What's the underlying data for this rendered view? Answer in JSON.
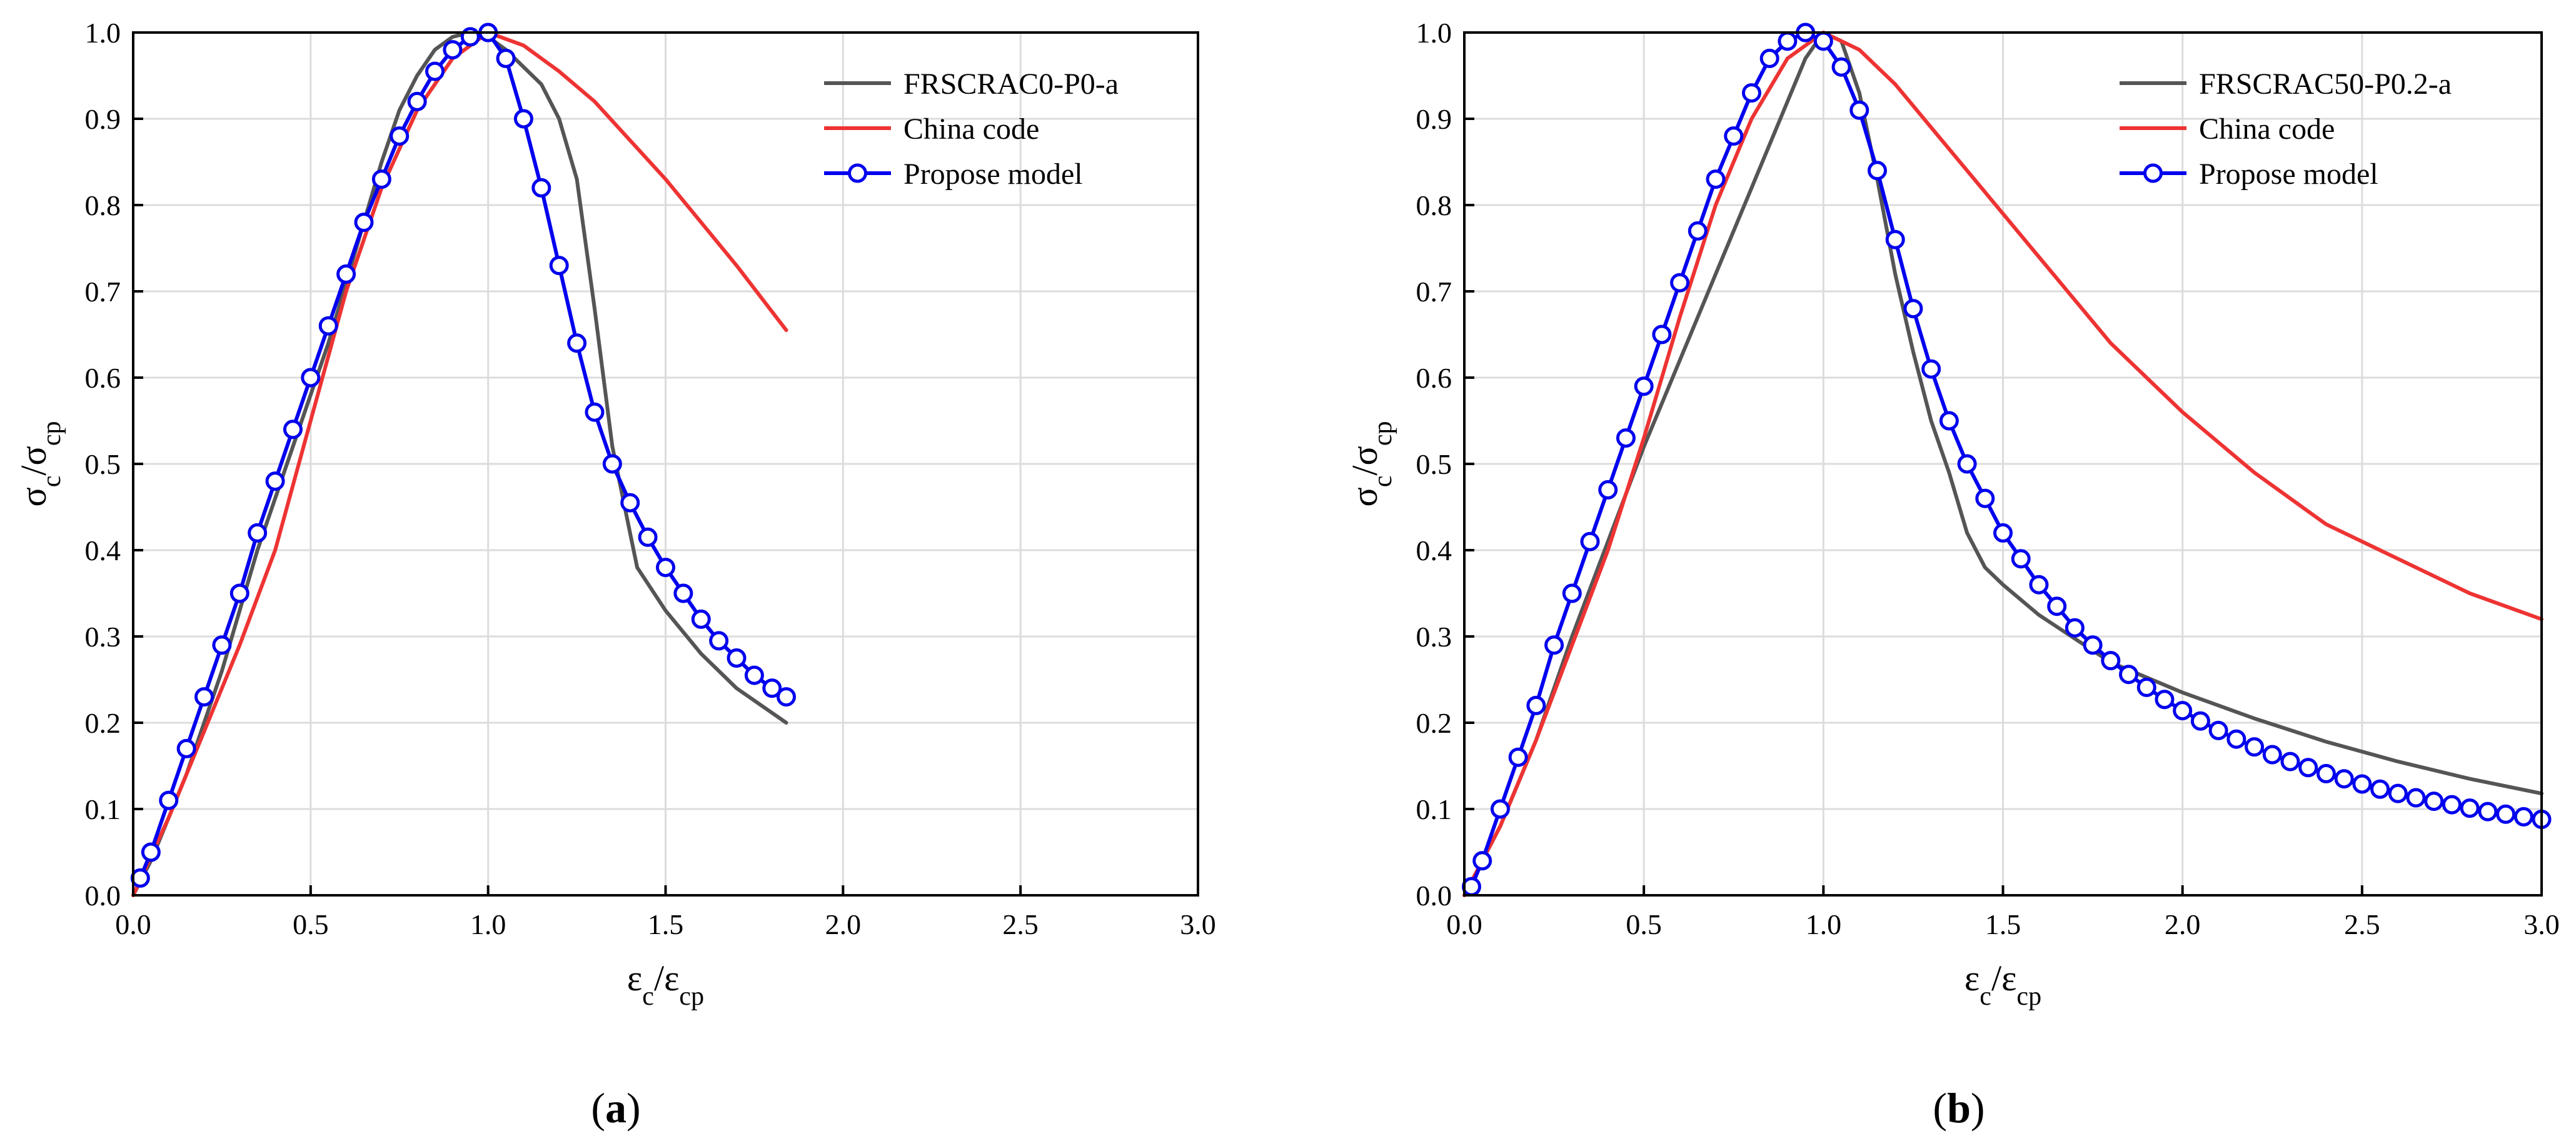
{
  "chart_data": [
    {
      "type": "line",
      "panel_label": "(a)",
      "xlabel": {
        "main": "ε",
        "sub": "c",
        "sep": "/",
        "main2": "ε",
        "sub2": "cp"
      },
      "ylabel": {
        "main": "σ",
        "sub": "c",
        "sep": "/",
        "main2": "σ",
        "sub2": "cp"
      },
      "xlim": [
        0,
        3.0
      ],
      "ylim": [
        0,
        1.0
      ],
      "xticks": [
        "0.0",
        "0.5",
        "1.0",
        "1.5",
        "2.0",
        "2.5",
        "3.0"
      ],
      "yticks": [
        "0.0",
        "0.1",
        "0.2",
        "0.3",
        "0.4",
        "0.5",
        "0.6",
        "0.7",
        "0.8",
        "0.9",
        "1.0"
      ],
      "grid": true,
      "legend_position": "top-right",
      "series": [
        {
          "name": "FRSCRAC0-P0-a",
          "color": "#555555",
          "marker": "none",
          "x": [
            0.0,
            0.05,
            0.1,
            0.15,
            0.2,
            0.25,
            0.3,
            0.35,
            0.4,
            0.45,
            0.5,
            0.55,
            0.6,
            0.65,
            0.7,
            0.75,
            0.8,
            0.85,
            0.9,
            0.95,
            1.0,
            1.05,
            1.1,
            1.15,
            1.2,
            1.25,
            1.3,
            1.35,
            1.4,
            1.42,
            1.5,
            1.6,
            1.7,
            1.84
          ],
          "y": [
            0.0,
            0.04,
            0.09,
            0.14,
            0.2,
            0.26,
            0.33,
            0.4,
            0.46,
            0.52,
            0.58,
            0.64,
            0.71,
            0.78,
            0.85,
            0.91,
            0.95,
            0.98,
            0.995,
            1.0,
            0.995,
            0.98,
            0.96,
            0.94,
            0.9,
            0.83,
            0.68,
            0.52,
            0.42,
            0.38,
            0.33,
            0.28,
            0.24,
            0.2
          ]
        },
        {
          "name": "China code",
          "color": "#ee3333",
          "marker": "none",
          "x": [
            0.0,
            0.1,
            0.2,
            0.3,
            0.4,
            0.5,
            0.6,
            0.7,
            0.8,
            0.9,
            1.0,
            1.1,
            1.2,
            1.3,
            1.4,
            1.5,
            1.6,
            1.7,
            1.84
          ],
          "y": [
            0.0,
            0.09,
            0.19,
            0.29,
            0.4,
            0.55,
            0.7,
            0.82,
            0.91,
            0.97,
            1.0,
            0.985,
            0.955,
            0.92,
            0.875,
            0.83,
            0.78,
            0.73,
            0.655
          ]
        },
        {
          "name": "Propose model",
          "color": "#0000ee",
          "marker": "circle",
          "x": [
            0.02,
            0.05,
            0.1,
            0.15,
            0.2,
            0.25,
            0.3,
            0.35,
            0.4,
            0.45,
            0.5,
            0.55,
            0.6,
            0.65,
            0.7,
            0.75,
            0.8,
            0.85,
            0.9,
            0.95,
            1.0,
            1.05,
            1.1,
            1.15,
            1.2,
            1.25,
            1.3,
            1.35,
            1.4,
            1.45,
            1.5,
            1.55,
            1.6,
            1.65,
            1.7,
            1.75,
            1.8,
            1.84
          ],
          "y": [
            0.02,
            0.05,
            0.11,
            0.17,
            0.23,
            0.29,
            0.35,
            0.42,
            0.48,
            0.54,
            0.6,
            0.66,
            0.72,
            0.78,
            0.83,
            0.88,
            0.92,
            0.955,
            0.98,
            0.995,
            1.0,
            0.97,
            0.9,
            0.82,
            0.73,
            0.64,
            0.56,
            0.5,
            0.455,
            0.415,
            0.38,
            0.35,
            0.32,
            0.295,
            0.275,
            0.255,
            0.24,
            0.23
          ]
        }
      ]
    },
    {
      "type": "line",
      "panel_label": "(b)",
      "xlabel": {
        "main": "ε",
        "sub": "c",
        "sep": "/",
        "main2": "ε",
        "sub2": "cp"
      },
      "ylabel": {
        "main": "σ",
        "sub": "c",
        "sep": "/",
        "main2": "σ",
        "sub2": "cp"
      },
      "xlim": [
        0,
        3.0
      ],
      "ylim": [
        0,
        1.0
      ],
      "xticks": [
        "0.0",
        "0.5",
        "1.0",
        "1.5",
        "2.0",
        "2.5",
        "3.0"
      ],
      "yticks": [
        "0.0",
        "0.1",
        "0.2",
        "0.3",
        "0.4",
        "0.5",
        "0.6",
        "0.7",
        "0.8",
        "0.9",
        "1.0"
      ],
      "grid": true,
      "legend_position": "top-right",
      "series": [
        {
          "name": "FRSCRAC50-P0.2-a",
          "color": "#555555",
          "marker": "none",
          "x": [
            0.0,
            0.1,
            0.2,
            0.3,
            0.4,
            0.5,
            0.6,
            0.7,
            0.8,
            0.9,
            0.95,
            1.0,
            1.05,
            1.1,
            1.15,
            1.2,
            1.25,
            1.3,
            1.35,
            1.4,
            1.45,
            1.5,
            1.6,
            1.8,
            2.0,
            2.2,
            2.4,
            2.6,
            2.8,
            3.0
          ],
          "y": [
            0.0,
            0.08,
            0.18,
            0.3,
            0.41,
            0.52,
            0.62,
            0.72,
            0.82,
            0.92,
            0.97,
            1.0,
            0.99,
            0.93,
            0.83,
            0.72,
            0.63,
            0.55,
            0.49,
            0.42,
            0.38,
            0.36,
            0.325,
            0.27,
            0.235,
            0.205,
            0.178,
            0.155,
            0.135,
            0.118
          ]
        },
        {
          "name": "China code",
          "color": "#ee3333",
          "marker": "none",
          "x": [
            0.0,
            0.1,
            0.2,
            0.3,
            0.4,
            0.5,
            0.6,
            0.7,
            0.8,
            0.9,
            1.0,
            1.1,
            1.2,
            1.3,
            1.4,
            1.5,
            1.6,
            1.8,
            2.0,
            2.2,
            2.4,
            2.6,
            2.8,
            3.0
          ],
          "y": [
            0.0,
            0.08,
            0.18,
            0.29,
            0.4,
            0.53,
            0.67,
            0.8,
            0.9,
            0.97,
            1.0,
            0.98,
            0.94,
            0.89,
            0.84,
            0.79,
            0.74,
            0.64,
            0.56,
            0.49,
            0.43,
            0.39,
            0.35,
            0.32
          ]
        },
        {
          "name": "Propose model",
          "color": "#0000ee",
          "marker": "circle",
          "x": [
            0.02,
            0.05,
            0.1,
            0.15,
            0.2,
            0.25,
            0.3,
            0.35,
            0.4,
            0.45,
            0.5,
            0.55,
            0.6,
            0.65,
            0.7,
            0.75,
            0.8,
            0.85,
            0.9,
            0.95,
            1.0,
            1.05,
            1.1,
            1.15,
            1.2,
            1.25,
            1.3,
            1.35,
            1.4,
            1.45,
            1.5,
            1.55,
            1.6,
            1.65,
            1.7,
            1.75,
            1.8,
            1.85,
            1.9,
            1.95,
            2.0,
            2.05,
            2.1,
            2.15,
            2.2,
            2.25,
            2.3,
            2.35,
            2.4,
            2.45,
            2.5,
            2.55,
            2.6,
            2.65,
            2.7,
            2.75,
            2.8,
            2.85,
            2.9,
            2.95,
            3.0
          ],
          "y": [
            0.01,
            0.04,
            0.1,
            0.16,
            0.22,
            0.29,
            0.35,
            0.41,
            0.47,
            0.53,
            0.59,
            0.65,
            0.71,
            0.77,
            0.83,
            0.88,
            0.93,
            0.97,
            0.99,
            1.0,
            0.99,
            0.96,
            0.91,
            0.84,
            0.76,
            0.68,
            0.61,
            0.55,
            0.5,
            0.46,
            0.42,
            0.39,
            0.36,
            0.335,
            0.31,
            0.29,
            0.272,
            0.256,
            0.241,
            0.227,
            0.214,
            0.202,
            0.191,
            0.181,
            0.172,
            0.163,
            0.155,
            0.148,
            0.141,
            0.135,
            0.129,
            0.123,
            0.118,
            0.113,
            0.109,
            0.105,
            0.101,
            0.097,
            0.094,
            0.091,
            0.088
          ]
        }
      ]
    }
  ]
}
